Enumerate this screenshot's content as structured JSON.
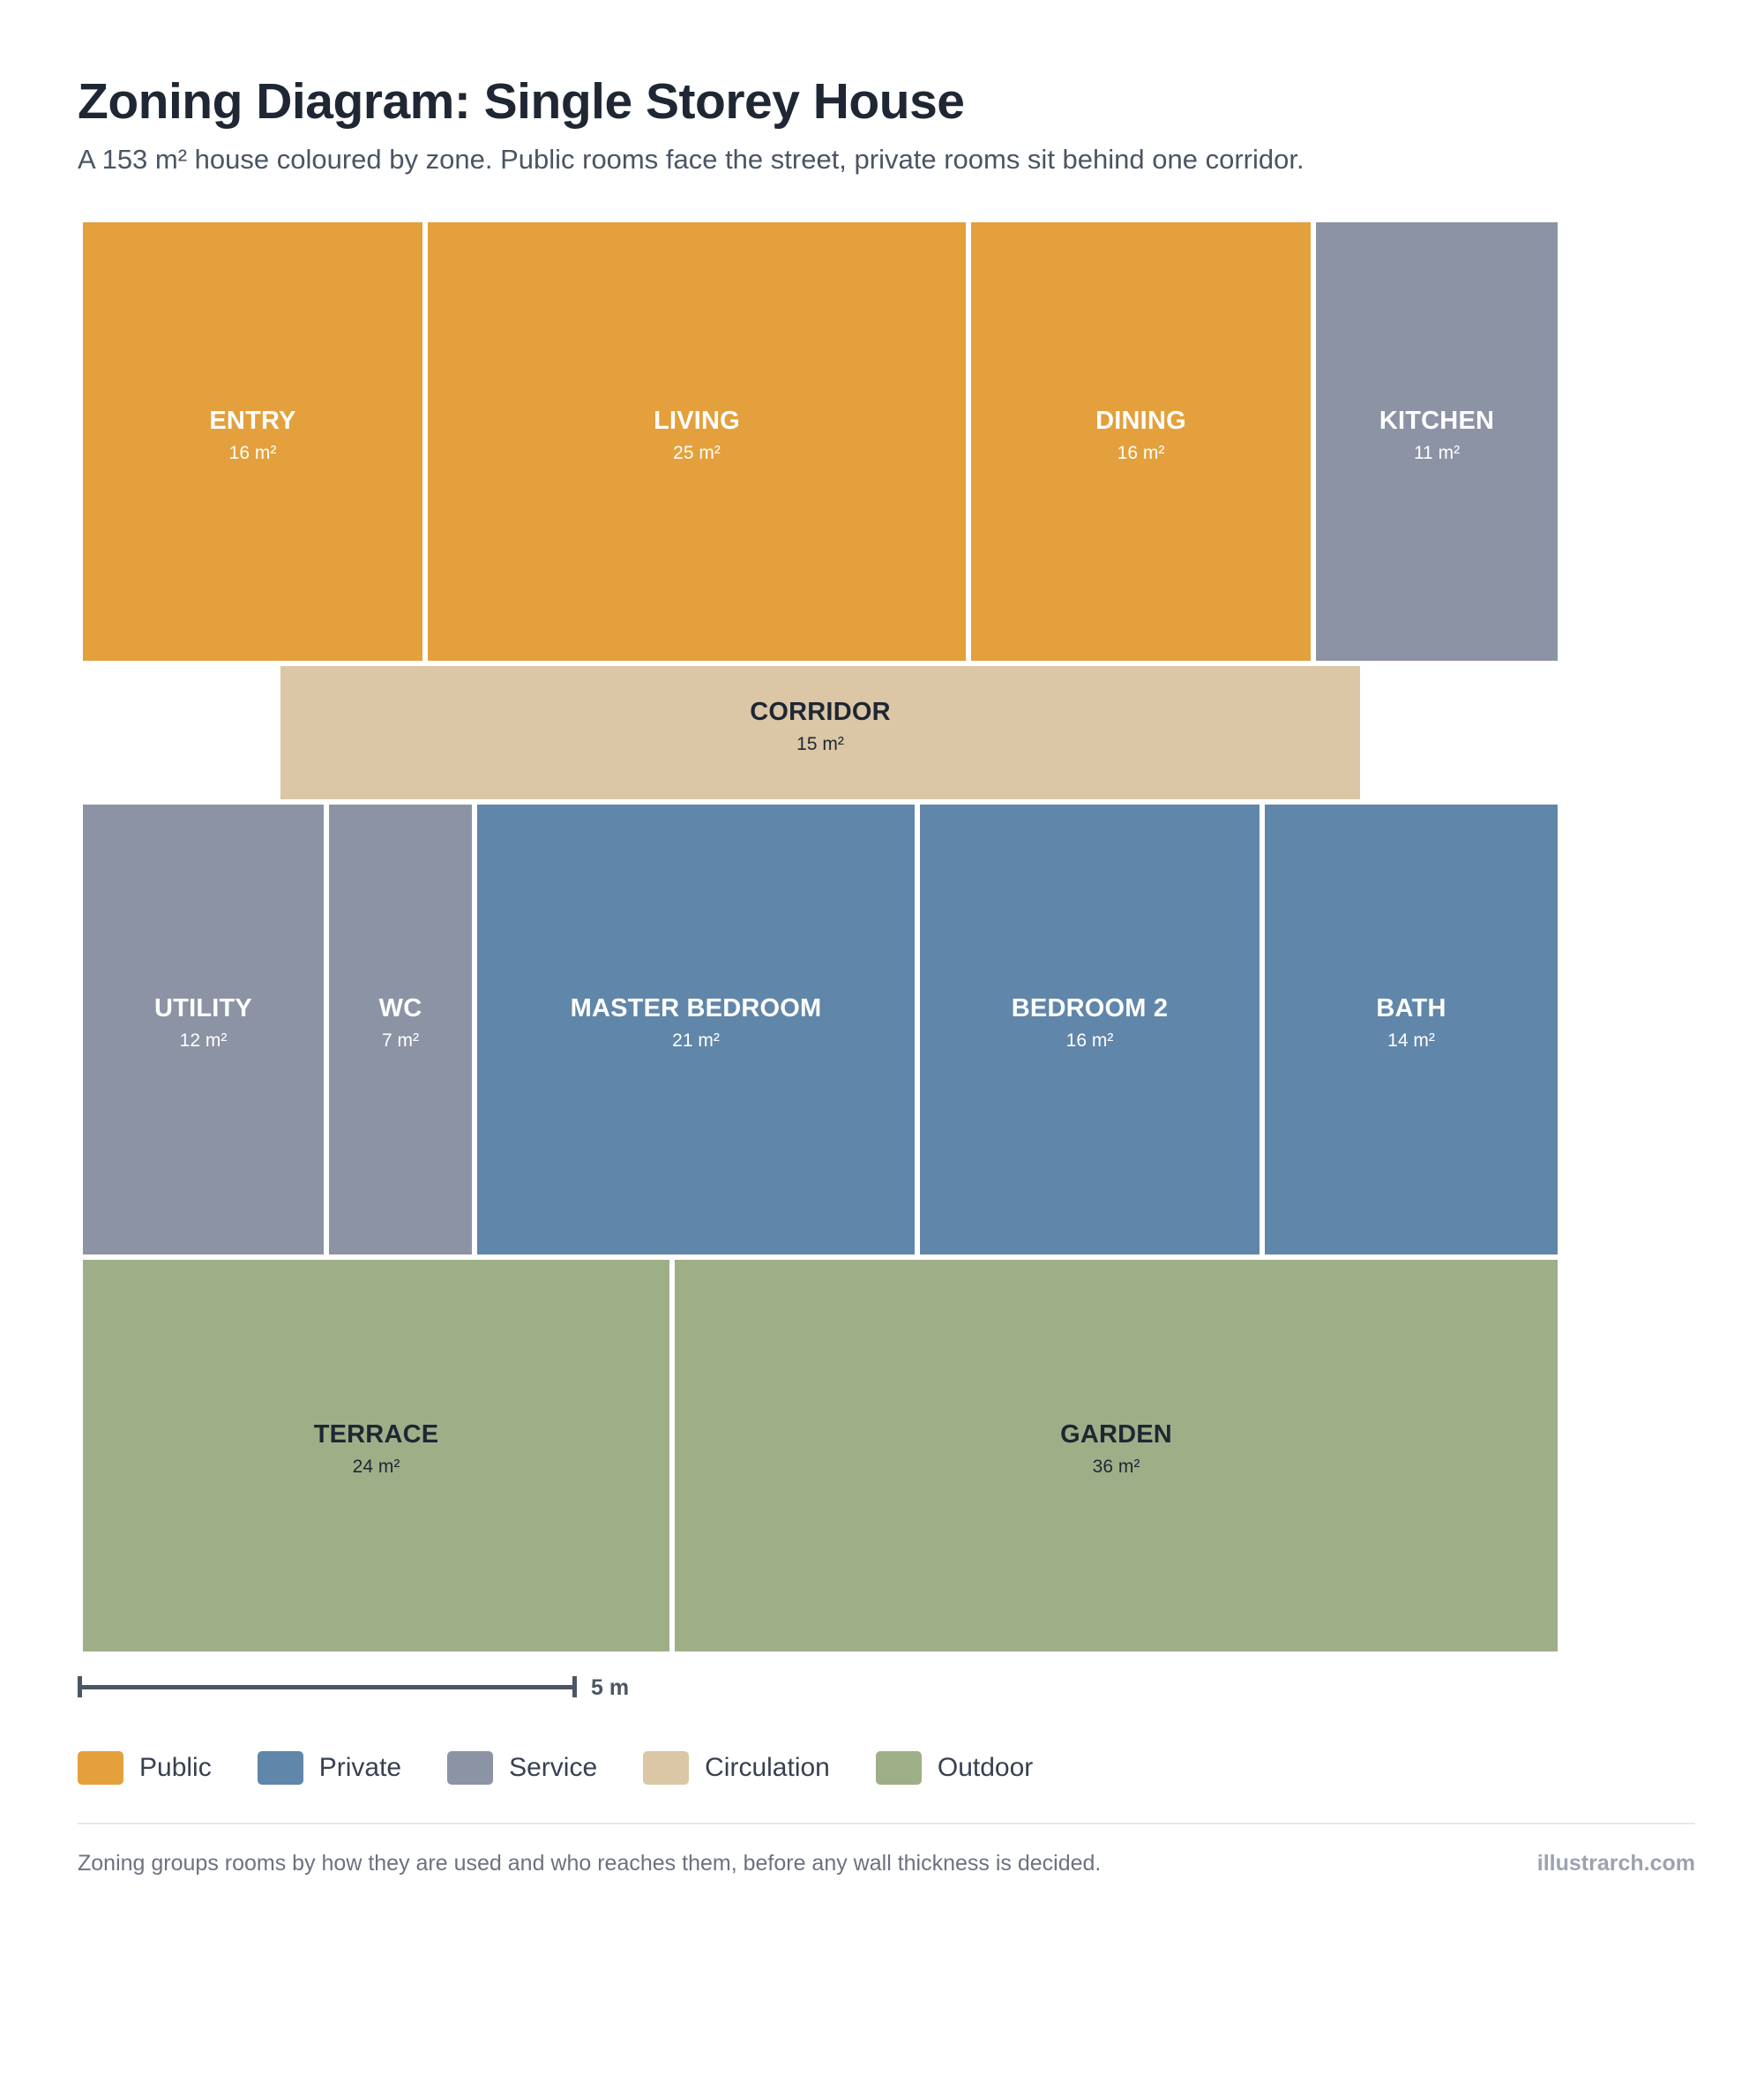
{
  "title": "Zoning Diagram: Single Storey House",
  "subtitle": "A 153 m² house coloured by zone. Public rooms face the street, private rooms sit behind one corridor.",
  "zones": {
    "public": {
      "label": "Public",
      "color": "#E3A03C"
    },
    "private": {
      "label": "Private",
      "color": "#6086AA"
    },
    "service": {
      "label": "Service",
      "color": "#8C93A5"
    },
    "circulation": {
      "label": "Circulation",
      "color": "#DBC7A5"
    },
    "outdoor": {
      "label": "Outdoor",
      "color": "#9EAF88"
    }
  },
  "rooms": [
    {
      "name": "ENTRY",
      "area": "16 m²",
      "zone": "public"
    },
    {
      "name": "LIVING",
      "area": "25 m²",
      "zone": "public"
    },
    {
      "name": "DINING",
      "area": "16 m²",
      "zone": "public"
    },
    {
      "name": "KITCHEN",
      "area": "11 m²",
      "zone": "service"
    },
    {
      "name": "CORRIDOR",
      "area": "15 m²",
      "zone": "circulation"
    },
    {
      "name": "UTILITY",
      "area": "12 m²",
      "zone": "service"
    },
    {
      "name": "WC",
      "area": "7 m²",
      "zone": "service"
    },
    {
      "name": "MASTER BEDROOM",
      "area": "21 m²",
      "zone": "private"
    },
    {
      "name": "BEDROOM 2",
      "area": "16 m²",
      "zone": "private"
    },
    {
      "name": "BATH",
      "area": "14 m²",
      "zone": "private"
    },
    {
      "name": "TERRACE",
      "area": "24 m²",
      "zone": "outdoor"
    },
    {
      "name": "GARDEN",
      "area": "36 m²",
      "zone": "outdoor"
    }
  ],
  "scale": {
    "label": "5 m"
  },
  "legend": [
    {
      "label": "Public",
      "color": "#E3A03C"
    },
    {
      "label": "Private",
      "color": "#6086AA"
    },
    {
      "label": "Service",
      "color": "#8C93A5"
    },
    {
      "label": "Circulation",
      "color": "#DBC7A5"
    },
    {
      "label": "Outdoor",
      "color": "#9EAF88"
    }
  ],
  "footer": {
    "note": "Zoning groups rooms by how they are used and who reaches them, before any wall thickness is decided.",
    "credit": "illustrarch.com"
  }
}
